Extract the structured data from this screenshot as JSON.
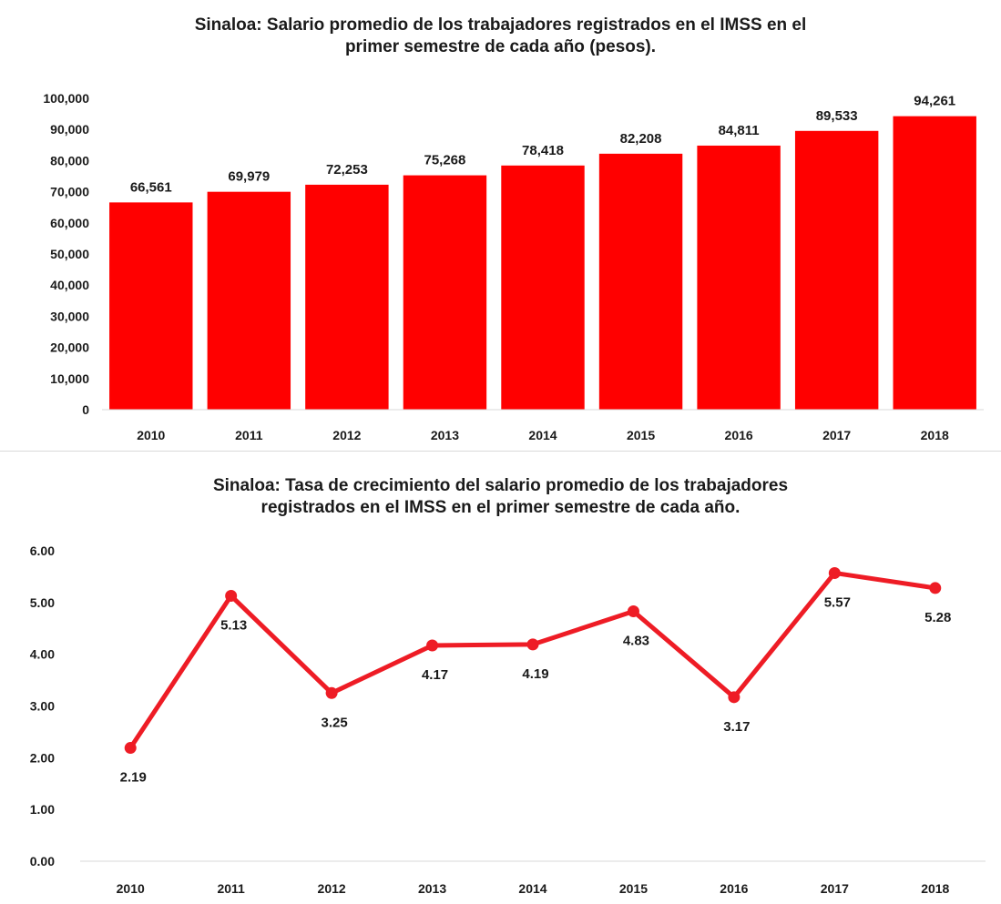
{
  "chart_data": [
    {
      "type": "bar",
      "title": "Sinaloa:  Salario  promedio  de los  trabajadores  registrados  en el IMSS en el\nprimer  semestre  de cada año (pesos).",
      "categories": [
        "2010",
        "2011",
        "2012",
        "2013",
        "2014",
        "2015",
        "2016",
        "2017",
        "2018"
      ],
      "values": [
        66561,
        69979,
        72253,
        75268,
        78418,
        82208,
        84811,
        89533,
        94261
      ],
      "value_labels": [
        "66,561",
        "69,979",
        "72,253",
        "75,268",
        "78,418",
        "82,208",
        "84,811",
        "89,533",
        "94,261"
      ],
      "ylim": [
        0,
        100000
      ],
      "yticks": [
        0,
        10000,
        20000,
        30000,
        40000,
        50000,
        60000,
        70000,
        80000,
        90000,
        100000
      ],
      "ytick_labels": [
        "0",
        "10,000",
        "20,000",
        "30,000",
        "40,000",
        "50,000",
        "60,000",
        "70,000",
        "80,000",
        "90,000",
        "100,000"
      ],
      "xlabel": "",
      "ylabel": "",
      "grid": false,
      "color": "#ff0000"
    },
    {
      "type": "line",
      "title": "Sinaloa:  Tasa de crecimiento  del salario promedio  de los trabajadores\nregistrados  en el IMSS en el primer  semestre  de cada año.",
      "categories": [
        "2010",
        "2011",
        "2012",
        "2013",
        "2014",
        "2015",
        "2016",
        "2017",
        "2018"
      ],
      "values": [
        2.19,
        5.13,
        3.25,
        4.17,
        4.19,
        4.83,
        3.17,
        5.57,
        5.28
      ],
      "value_labels": [
        "2.19",
        "5.13",
        "3.25",
        "4.17",
        "4.19",
        "4.83",
        "3.17",
        "5.57",
        "5.28"
      ],
      "ylim": [
        0,
        6
      ],
      "yticks": [
        0,
        1,
        2,
        3,
        4,
        5,
        6
      ],
      "ytick_labels": [
        "0.00",
        "1.00",
        "2.00",
        "3.00",
        "4.00",
        "5.00",
        "6.00"
      ],
      "xlabel": "",
      "ylabel": "",
      "grid": false,
      "color": "#ee1c25"
    }
  ]
}
